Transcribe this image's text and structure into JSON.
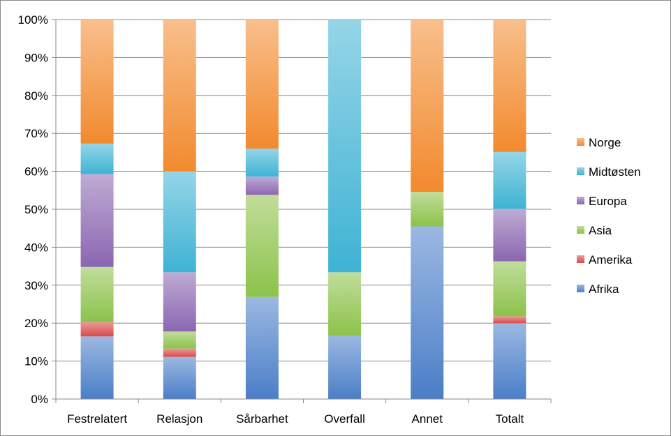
{
  "chart_data": {
    "type": "bar",
    "stacked": true,
    "normalized": true,
    "categories": [
      "Festrelatert",
      "Relasjon",
      "Sårbarhet",
      "Overfall",
      "Annet",
      "Totalt"
    ],
    "series": [
      {
        "name": "Afrika",
        "color": "#4a7ec8",
        "values": [
          16.5,
          11.1,
          26.9,
          16.7,
          45.5,
          20.0
        ]
      },
      {
        "name": "Amerika",
        "color": "#d9494a",
        "values": [
          3.8,
          2.2,
          0.0,
          0.0,
          0.0,
          1.8
        ]
      },
      {
        "name": "Asia",
        "color": "#8cc24a",
        "values": [
          14.5,
          4.5,
          26.9,
          16.7,
          9.1,
          14.5
        ]
      },
      {
        "name": "Europa",
        "color": "#8a66b0",
        "values": [
          24.5,
          15.6,
          4.8,
          0.0,
          0.0,
          13.8
        ]
      },
      {
        "name": "Midtøsten",
        "color": "#3eb3d4",
        "values": [
          8.0,
          26.6,
          7.4,
          66.6,
          0.0,
          15.0
        ]
      },
      {
        "name": "Norge",
        "color": "#f28a2e",
        "values": [
          32.7,
          40.0,
          34.0,
          0.0,
          45.4,
          34.9
        ]
      }
    ],
    "yticks": [
      "0%",
      "10%",
      "20%",
      "30%",
      "40%",
      "50%",
      "60%",
      "70%",
      "80%",
      "90%",
      "100%"
    ],
    "ylim": [
      0,
      100
    ],
    "legend_position": "right",
    "grid": true
  }
}
